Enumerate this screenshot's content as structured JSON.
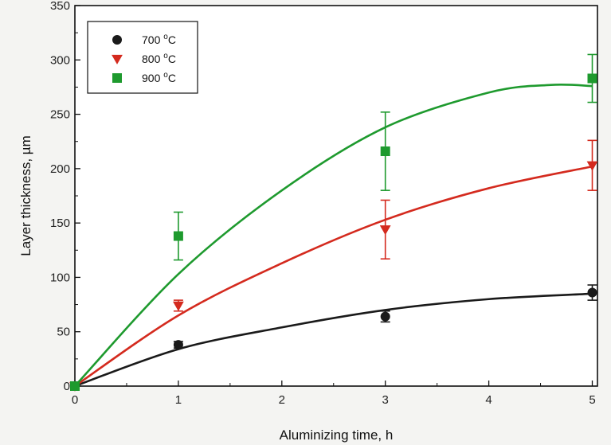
{
  "chart_data": {
    "type": "scatter",
    "title": "",
    "xlabel": "Aluminizing time, h",
    "ylabel": "Layer thickness, µm",
    "xlim": [
      0,
      5.05
    ],
    "ylim": [
      0,
      350
    ],
    "x_ticks": [
      0,
      1,
      2,
      3,
      4,
      5
    ],
    "y_ticks": [
      0,
      50,
      100,
      150,
      200,
      250,
      300,
      350
    ],
    "grid": false,
    "legend_position": "top-left",
    "series": [
      {
        "name": "700 °C",
        "label_value": "700",
        "label_unit": "C",
        "label_degree": "o",
        "color": "#1a1a1a",
        "marker": "circle",
        "points": [
          {
            "x": 0,
            "y": 0,
            "err": 0
          },
          {
            "x": 1,
            "y": 38,
            "err": 3
          },
          {
            "x": 3,
            "y": 64,
            "err": 5
          },
          {
            "x": 5,
            "y": 86,
            "err": 7
          }
        ],
        "fit": [
          [
            0,
            0
          ],
          [
            1,
            34
          ],
          [
            2,
            54
          ],
          [
            3,
            70
          ],
          [
            4,
            80
          ],
          [
            5,
            85
          ]
        ]
      },
      {
        "name": "800 °C",
        "label_value": "800",
        "label_unit": "C",
        "label_degree": "o",
        "color": "#d42a1e",
        "marker": "triangle-down",
        "points": [
          {
            "x": 0,
            "y": 0,
            "err": 0
          },
          {
            "x": 1,
            "y": 74,
            "err": 5
          },
          {
            "x": 3,
            "y": 144,
            "err": 27
          },
          {
            "x": 5,
            "y": 203,
            "err": 23
          }
        ],
        "fit": [
          [
            0,
            0
          ],
          [
            1,
            65
          ],
          [
            2,
            113
          ],
          [
            3,
            153
          ],
          [
            4,
            182
          ],
          [
            5,
            202
          ]
        ]
      },
      {
        "name": "900 °C",
        "label_value": "900",
        "label_unit": "C",
        "label_degree": "o",
        "color": "#1e9a2e",
        "marker": "square",
        "points": [
          {
            "x": 0,
            "y": 0,
            "err": 0
          },
          {
            "x": 1,
            "y": 138,
            "err": 22
          },
          {
            "x": 3,
            "y": 216,
            "err": 36
          },
          {
            "x": 5,
            "y": 283,
            "err": 22
          }
        ],
        "fit": [
          [
            0,
            0
          ],
          [
            1,
            103
          ],
          [
            2,
            180
          ],
          [
            3,
            238
          ],
          [
            4,
            270
          ],
          [
            4.6,
            277
          ],
          [
            5,
            276
          ]
        ]
      }
    ]
  }
}
